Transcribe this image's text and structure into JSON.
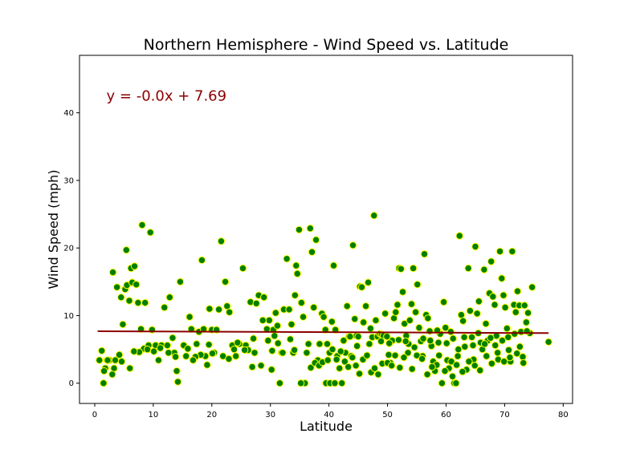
{
  "chart_data": {
    "type": "scatter",
    "title": "Northern Hemisphere - Wind Speed vs. Latitude",
    "xlabel": "Latitude",
    "ylabel": "Wind Speed (mph)",
    "xlim": [
      -2.6,
      81.6
    ],
    "ylim": [
      -3,
      48.5
    ],
    "xticks": [
      0,
      10,
      20,
      30,
      40,
      50,
      60,
      70,
      80
    ],
    "yticks": [
      0,
      10,
      20,
      30,
      40
    ],
    "grid": false,
    "annotation": {
      "text": "y = -0.0x + 7.69",
      "x": 2,
      "y": 42.5
    },
    "regression": {
      "slope": -0.0036,
      "intercept": 7.69,
      "x_start": 0.5,
      "x_end": 77.5
    },
    "marker_fill": "#008000",
    "marker_edge": "#ffff00",
    "line_color": "#8b0000",
    "series": [
      {
        "points": [
          [
            1.2,
            4.8
          ],
          [
            1.5,
            0
          ],
          [
            2.1,
            3.4
          ],
          [
            1.8,
            2.2
          ],
          [
            0.8,
            3.4
          ],
          [
            2.5,
            3.4
          ],
          [
            1.6,
            1.8
          ],
          [
            3.3,
            2.2
          ],
          [
            3.5,
            3.4
          ],
          [
            3.1,
            16.4
          ],
          [
            3.8,
            14.2
          ],
          [
            4.5,
            12.7
          ],
          [
            4.8,
            8.7
          ],
          [
            5.2,
            13.9
          ],
          [
            5.5,
            14.5
          ],
          [
            5.4,
            19.7
          ],
          [
            5.9,
            12.2
          ],
          [
            6.4,
            14.9
          ],
          [
            6.2,
            17.0
          ],
          [
            6.8,
            17.3
          ],
          [
            7.1,
            14.6
          ],
          [
            7.4,
            11.9
          ],
          [
            7.9,
            8.0
          ],
          [
            8.1,
            23.4
          ],
          [
            8.6,
            11.9
          ],
          [
            8.4,
            5.1
          ],
          [
            9.2,
            5.6
          ],
          [
            9.5,
            22.3
          ],
          [
            9.8,
            7.9
          ],
          [
            10.4,
            5.6
          ],
          [
            10.9,
            3.4
          ],
          [
            11.4,
            5.6
          ],
          [
            11.9,
            11.2
          ],
          [
            12.4,
            5.6
          ],
          [
            12.8,
            12.7
          ],
          [
            13.3,
            6.7
          ],
          [
            13.6,
            4.5
          ],
          [
            14.0,
            1.8
          ],
          [
            14.2,
            0.2
          ],
          [
            14.6,
            15.0
          ],
          [
            15.2,
            5.6
          ],
          [
            15.6,
            4.0
          ],
          [
            16.2,
            9.8
          ],
          [
            16.5,
            8.0
          ],
          [
            17.4,
            5.8
          ],
          [
            17.8,
            7.6
          ],
          [
            18.3,
            18.2
          ],
          [
            18.6,
            8.0
          ],
          [
            18.9,
            4.0
          ],
          [
            19.2,
            2.7
          ],
          [
            19.6,
            11.0
          ],
          [
            20.0,
            7.9
          ],
          [
            20.4,
            4.5
          ],
          [
            20.8,
            7.9
          ],
          [
            21.2,
            10.9
          ],
          [
            21.6,
            21.0
          ],
          [
            21.9,
            4.0
          ],
          [
            22.3,
            15.0
          ],
          [
            22.6,
            11.4
          ],
          [
            23.0,
            10.5
          ],
          [
            23.5,
            5.6
          ],
          [
            24.1,
            4.0
          ],
          [
            24.7,
            5.8
          ],
          [
            25.3,
            17.0
          ],
          [
            25.8,
            5.6
          ],
          [
            26.2,
            4.9
          ],
          [
            26.6,
            12.0
          ],
          [
            27.1,
            6.6
          ],
          [
            27.6,
            11.8
          ],
          [
            28.0,
            13.0
          ],
          [
            28.4,
            2.6
          ],
          [
            28.9,
            12.7
          ],
          [
            29.4,
            8.0
          ],
          [
            29.8,
            9.3
          ],
          [
            30.2,
            2.0
          ],
          [
            30.5,
            7.9
          ],
          [
            30.9,
            10.4
          ],
          [
            31.2,
            8.5
          ],
          [
            31.6,
            0
          ],
          [
            31.9,
            4.5
          ],
          [
            32.3,
            10.9
          ],
          [
            32.8,
            18.4
          ],
          [
            33.2,
            10.9
          ],
          [
            33.6,
            8.7
          ],
          [
            33.9,
            4.5
          ],
          [
            34.2,
            13.0
          ],
          [
            34.4,
            17.4
          ],
          [
            34.6,
            16.2
          ],
          [
            34.9,
            22.7
          ],
          [
            35.3,
            11.9
          ],
          [
            35.6,
            9.8
          ],
          [
            35.9,
            0
          ],
          [
            36.2,
            4.5
          ],
          [
            36.5,
            5.8
          ],
          [
            36.8,
            22.9
          ],
          [
            37.1,
            19.4
          ],
          [
            37.4,
            11.2
          ],
          [
            37.8,
            21.2
          ],
          [
            38.1,
            3.4
          ],
          [
            38.4,
            5.8
          ],
          [
            38.8,
            10.3
          ],
          [
            39.1,
            9.8
          ],
          [
            39.4,
            7.9
          ],
          [
            39.7,
            5.8
          ],
          [
            40.1,
            4.5
          ],
          [
            40.5,
            9.1
          ],
          [
            40.8,
            17.4
          ],
          [
            41.1,
            7.9
          ],
          [
            41.4,
            4.0
          ],
          [
            41.8,
            2.2
          ],
          [
            42.2,
            0
          ],
          [
            42.5,
            6.3
          ],
          [
            42.8,
            4.5
          ],
          [
            43.1,
            11.4
          ],
          [
            43.4,
            6.9
          ],
          [
            43.8,
            4.0
          ],
          [
            44.1,
            20.4
          ],
          [
            44.4,
            9.5
          ],
          [
            44.7,
            7.0
          ],
          [
            45.0,
            6.9
          ],
          [
            45.3,
            14.3
          ],
          [
            45.6,
            14.2
          ],
          [
            45.9,
            9.0
          ],
          [
            46.3,
            11.4
          ],
          [
            46.7,
            14.9
          ],
          [
            47.1,
            8.1
          ],
          [
            47.4,
            6.8
          ],
          [
            47.7,
            24.8
          ],
          [
            48.0,
            9.3
          ],
          [
            48.3,
            6.9
          ],
          [
            48.7,
            7.3
          ],
          [
            49.0,
            7.2
          ],
          [
            49.3,
            7.0
          ],
          [
            49.6,
            10.3
          ],
          [
            49.9,
            6.9
          ],
          [
            50.2,
            4.2
          ],
          [
            50.5,
            3.0
          ],
          [
            50.8,
            6.3
          ],
          [
            51.1,
            9.6
          ],
          [
            51.4,
            10.5
          ],
          [
            51.7,
            11.6
          ],
          [
            52.0,
            17.0
          ],
          [
            52.3,
            16.9
          ],
          [
            52.6,
            13.5
          ],
          [
            52.9,
            8.8
          ],
          [
            53.2,
            7.0
          ],
          [
            53.5,
            4.5
          ],
          [
            53.8,
            9.3
          ],
          [
            54.1,
            11.7
          ],
          [
            54.4,
            17.0
          ],
          [
            54.8,
            10.5
          ],
          [
            55.1,
            14.6
          ],
          [
            55.4,
            8.2
          ],
          [
            55.7,
            6.2
          ],
          [
            56.0,
            4.0
          ],
          [
            56.3,
            19.1
          ],
          [
            56.6,
            10.1
          ],
          [
            56.9,
            9.6
          ],
          [
            57.2,
            7.7
          ],
          [
            57.5,
            5.5
          ],
          [
            57.8,
            3.2
          ],
          [
            58.1,
            1.8
          ],
          [
            58.4,
            2.7
          ],
          [
            58.7,
            6.0
          ],
          [
            59.0,
            7.3
          ],
          [
            59.3,
            0
          ],
          [
            59.6,
            12.0
          ],
          [
            59.9,
            8.2
          ],
          [
            60.2,
            3.4
          ],
          [
            60.5,
            2.2
          ],
          [
            60.8,
            7.6
          ],
          [
            61.1,
            1.0
          ],
          [
            61.4,
            0
          ],
          [
            61.7,
            0
          ],
          [
            62.0,
            4.0
          ],
          [
            62.3,
            21.8
          ],
          [
            62.6,
            10.1
          ],
          [
            62.9,
            9.2
          ],
          [
            63.2,
            5.4
          ],
          [
            63.5,
            2.0
          ],
          [
            63.8,
            17.0
          ],
          [
            64.1,
            10.7
          ],
          [
            64.4,
            6.8
          ],
          [
            64.7,
            3.5
          ],
          [
            65.0,
            20.2
          ],
          [
            65.3,
            10.3
          ],
          [
            65.6,
            12.1
          ],
          [
            65.9,
            6.0
          ],
          [
            66.2,
            5.0
          ],
          [
            66.5,
            16.8
          ],
          [
            66.8,
            8.8
          ],
          [
            67.1,
            6.3
          ],
          [
            67.4,
            13.3
          ],
          [
            67.7,
            18.0
          ],
          [
            68.0,
            12.8
          ],
          [
            68.3,
            11.6
          ],
          [
            68.6,
            7.0
          ],
          [
            68.9,
            3.5
          ],
          [
            69.2,
            19.5
          ],
          [
            69.5,
            15.5
          ],
          [
            69.8,
            13.0
          ],
          [
            70.1,
            11.2
          ],
          [
            70.4,
            8.1
          ],
          [
            70.7,
            4.9
          ],
          [
            71.0,
            3.2
          ],
          [
            71.3,
            19.5
          ],
          [
            71.6,
            11.6
          ],
          [
            71.9,
            10.5
          ],
          [
            72.2,
            13.6
          ],
          [
            72.5,
            11.5
          ],
          [
            72.8,
            7.6
          ],
          [
            73.1,
            3.9
          ],
          [
            73.4,
            11.5
          ],
          [
            73.7,
            9.0
          ],
          [
            74.0,
            10.4
          ],
          [
            74.3,
            7.4
          ],
          [
            74.7,
            14.2
          ],
          [
            77.5,
            6.1
          ],
          [
            39.5,
            0
          ],
          [
            40.2,
            0
          ],
          [
            41.0,
            0
          ],
          [
            35.2,
            0
          ],
          [
            30.3,
            4.8
          ],
          [
            29.6,
            6.3
          ],
          [
            28.7,
            9.3
          ],
          [
            27.3,
            4.5
          ],
          [
            26.9,
            2.4
          ],
          [
            25.6,
            4.9
          ],
          [
            24.4,
            6.0
          ],
          [
            23.8,
            5.0
          ],
          [
            22.9,
            3.6
          ],
          [
            20.1,
            4.4
          ],
          [
            19.5,
            5.7
          ],
          [
            18.1,
            4.2
          ],
          [
            17.2,
            3.9
          ],
          [
            16.8,
            3.4
          ],
          [
            15.9,
            5.1
          ],
          [
            13.8,
            3.9
          ],
          [
            12.6,
            4.5
          ],
          [
            11.2,
            5.2
          ],
          [
            10.1,
            4.7
          ],
          [
            9.0,
            5.0
          ],
          [
            7.6,
            4.6
          ],
          [
            6.7,
            4.7
          ],
          [
            6.0,
            2.2
          ],
          [
            4.6,
            3.2
          ],
          [
            4.2,
            4.2
          ],
          [
            3.0,
            1.3
          ],
          [
            2.2,
            3.4
          ],
          [
            36.9,
            2.3
          ],
          [
            37.6,
            3.0
          ],
          [
            38.3,
            2.6
          ],
          [
            38.9,
            3.1
          ],
          [
            39.8,
            3.4
          ],
          [
            40.6,
            5.0
          ],
          [
            41.3,
            3.5
          ],
          [
            42.0,
            4.7
          ],
          [
            42.7,
            3.2
          ],
          [
            43.3,
            2.4
          ],
          [
            44.0,
            3.8
          ],
          [
            44.6,
            2.6
          ],
          [
            45.2,
            1.4
          ],
          [
            45.8,
            3.5
          ],
          [
            46.5,
            4.1
          ],
          [
            47.2,
            1.6
          ],
          [
            47.8,
            2.2
          ],
          [
            48.4,
            1.3
          ],
          [
            49.1,
            2.9
          ],
          [
            50.0,
            3.0
          ],
          [
            50.7,
            2.6
          ],
          [
            51.3,
            4.1
          ],
          [
            52.1,
            2.3
          ],
          [
            52.8,
            3.8
          ],
          [
            53.6,
            5.8
          ],
          [
            54.2,
            2.1
          ],
          [
            55.0,
            4.1
          ],
          [
            55.9,
            3.6
          ],
          [
            56.8,
            1.3
          ],
          [
            57.6,
            2.4
          ],
          [
            58.8,
            4.1
          ],
          [
            59.8,
            1.8
          ],
          [
            60.9,
            3.2
          ],
          [
            61.8,
            2.7
          ],
          [
            62.8,
            1.7
          ],
          [
            63.9,
            3.2
          ],
          [
            64.9,
            2.6
          ],
          [
            65.8,
            1.9
          ],
          [
            66.9,
            4.0
          ],
          [
            67.8,
            2.9
          ],
          [
            68.8,
            4.5
          ],
          [
            69.9,
            3.2
          ],
          [
            70.9,
            3.8
          ],
          [
            72.1,
            4.4
          ],
          [
            73.2,
            3.0
          ],
          [
            34.1,
            4.9
          ],
          [
            33.4,
            6.5
          ],
          [
            32.1,
            4.5
          ],
          [
            31.3,
            5.9
          ],
          [
            30.7,
            7.0
          ],
          [
            43.6,
            6.9
          ],
          [
            44.8,
            5.5
          ],
          [
            46.9,
            5.8
          ],
          [
            48.9,
            6.2
          ],
          [
            50.3,
            5.9
          ],
          [
            51.9,
            6.4
          ],
          [
            53.1,
            6.2
          ],
          [
            54.6,
            5.3
          ],
          [
            56.1,
            6.6
          ],
          [
            57.3,
            6.3
          ],
          [
            58.5,
            7.8
          ],
          [
            60.1,
            5.9
          ],
          [
            61.2,
            6.6
          ],
          [
            62.1,
            5.0
          ],
          [
            63.1,
            6.8
          ],
          [
            64.6,
            5.6
          ],
          [
            65.5,
            7.4
          ],
          [
            66.6,
            5.8
          ],
          [
            67.6,
            6.7
          ],
          [
            68.4,
            5.6
          ],
          [
            69.6,
            6.3
          ],
          [
            70.6,
            6.8
          ],
          [
            71.7,
            7.3
          ],
          [
            72.6,
            5.4
          ],
          [
            73.8,
            7.7
          ]
        ]
      }
    ]
  }
}
